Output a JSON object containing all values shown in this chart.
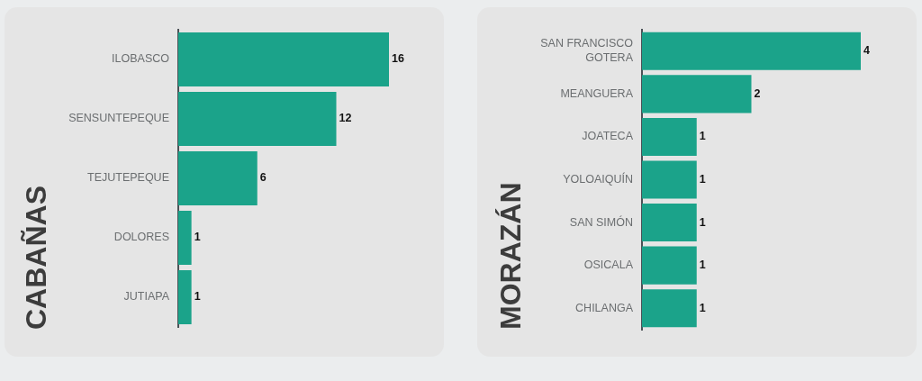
{
  "chart_data": [
    {
      "type": "bar",
      "orientation": "horizontal",
      "title": "CABAÑAS",
      "categories": [
        "ILOBASCO",
        "SENSUNTEPEQUE",
        "TEJUTEPEQUE",
        "DOLORES",
        "JUTIAPA"
      ],
      "values": [
        16,
        12,
        6,
        1,
        1
      ],
      "color": "#1ba38a",
      "data_labels": true,
      "tick_labels": "y"
    },
    {
      "type": "bar",
      "orientation": "horizontal",
      "title": "MORAZÁN",
      "categories": [
        "SAN FRANCISCO GOTERA",
        "MEANGUERA",
        "JOATECA",
        "YOLOAIQUÍN",
        "SAN SIMÓN",
        "OSICALA",
        "CHILANGA"
      ],
      "values": [
        4,
        2,
        1,
        1,
        1,
        1,
        1
      ],
      "color": "#1ba38a",
      "data_labels": true,
      "tick_labels": "y"
    }
  ]
}
